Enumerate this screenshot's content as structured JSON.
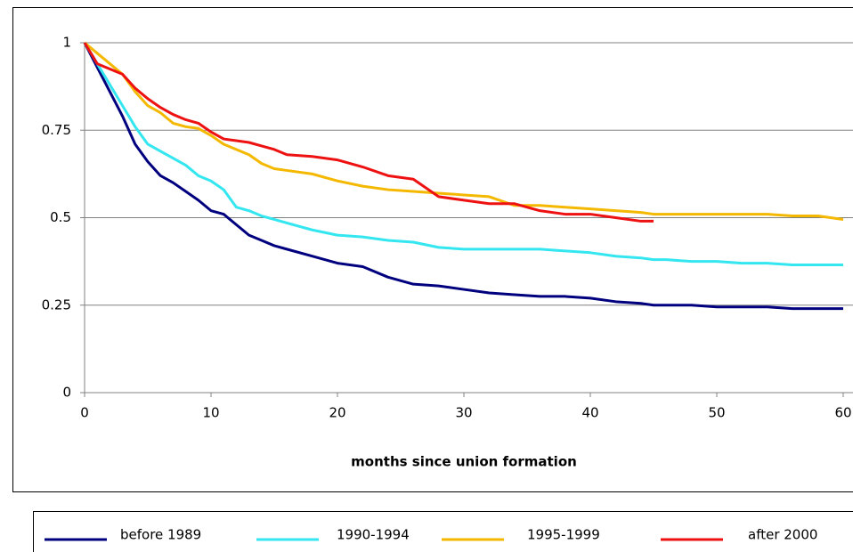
{
  "chart_data": {
    "type": "line",
    "xlabel": "months since union formation",
    "x": [
      0,
      1,
      2,
      3,
      4,
      5,
      6,
      7,
      8,
      9,
      10,
      11,
      12,
      13,
      14,
      15,
      16,
      18,
      20,
      22,
      24,
      26,
      28,
      30,
      32,
      34,
      36,
      38,
      40,
      42,
      44,
      45,
      46,
      48,
      50,
      52,
      54,
      56,
      58,
      60
    ],
    "series": [
      {
        "name": "before 1989",
        "color": "#00007f",
        "values": [
          1,
          0.93,
          0.86,
          0.79,
          0.71,
          0.66,
          0.62,
          0.6,
          0.575,
          0.55,
          0.52,
          0.51,
          0.48,
          0.45,
          0.435,
          0.42,
          0.41,
          0.39,
          0.37,
          0.36,
          0.33,
          0.31,
          0.305,
          0.295,
          0.285,
          0.28,
          0.275,
          0.275,
          0.27,
          0.26,
          0.255,
          0.25,
          0.25,
          0.25,
          0.245,
          0.245,
          0.245,
          0.24,
          0.24,
          0.24
        ]
      },
      {
        "name": "1990-1994",
        "color": "#33e6f0",
        "values": [
          1,
          0.94,
          0.88,
          0.82,
          0.76,
          0.71,
          0.69,
          0.67,
          0.65,
          0.62,
          0.605,
          0.58,
          0.53,
          0.52,
          0.505,
          0.495,
          0.485,
          0.465,
          0.45,
          0.445,
          0.435,
          0.43,
          0.415,
          0.41,
          0.41,
          0.41,
          0.41,
          0.405,
          0.4,
          0.39,
          0.385,
          0.38,
          0.38,
          0.375,
          0.375,
          0.37,
          0.37,
          0.365,
          0.365,
          0.365
        ]
      },
      {
        "name": "1995-1999",
        "color": "#f5b800",
        "values": [
          1,
          0.97,
          0.94,
          0.91,
          0.86,
          0.82,
          0.8,
          0.77,
          0.76,
          0.755,
          0.735,
          0.71,
          0.695,
          0.68,
          0.655,
          0.64,
          0.635,
          0.625,
          0.605,
          0.59,
          0.58,
          0.575,
          0.57,
          0.565,
          0.56,
          0.535,
          0.535,
          0.53,
          0.525,
          0.52,
          0.515,
          0.51,
          0.51,
          0.51,
          0.51,
          0.51,
          0.51,
          0.505,
          0.505,
          0.495
        ]
      },
      {
        "name": "after 2000",
        "color": "#ee1111",
        "values": [
          1,
          0.94,
          0.925,
          0.91,
          0.87,
          0.84,
          0.815,
          0.795,
          0.78,
          0.77,
          0.745,
          0.725,
          0.72,
          0.715,
          0.705,
          0.695,
          0.68,
          0.675,
          0.665,
          0.645,
          0.62,
          0.61,
          0.56,
          0.55,
          0.54,
          0.54,
          0.52,
          0.51,
          0.51,
          0.5,
          0.49,
          0.49,
          null,
          null,
          null,
          null,
          null,
          null,
          null,
          null
        ]
      }
    ],
    "xlim": [
      0,
      60
    ],
    "xticks": [
      0,
      10,
      20,
      30,
      40,
      50,
      60
    ],
    "ylim": [
      0,
      1
    ],
    "yticks": [
      0,
      0.25,
      0.5,
      0.75,
      1
    ],
    "grid": true,
    "legend": "bottom"
  }
}
